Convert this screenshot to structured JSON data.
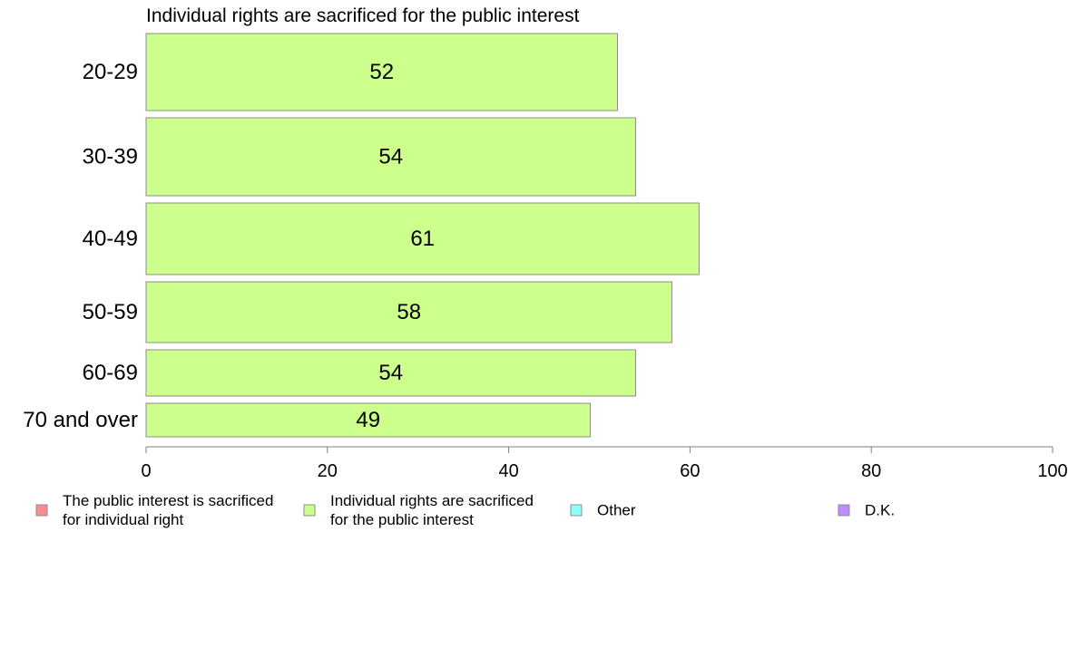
{
  "chart_data": {
    "type": "bar",
    "orientation": "horizontal",
    "title": "Individual rights are sacrificed for the public interest",
    "categories": [
      "20-29",
      "30-39",
      "40-49",
      "50-59",
      "60-69",
      "70 and over"
    ],
    "series": [
      {
        "name": "Individual rights are sacrificed for the public interest",
        "values": [
          52,
          54,
          61,
          58,
          54,
          49
        ],
        "color": "#ccff8c"
      }
    ],
    "xlim": [
      0,
      100
    ],
    "xticks": [
      0,
      20,
      40,
      60,
      80,
      100
    ],
    "grid": false,
    "legend_position": "bottom",
    "legend": [
      {
        "lines": [
          "The public interest is sacrificed",
          "for individual right"
        ],
        "color": "#ff8c8c"
      },
      {
        "lines": [
          "Individual rights are sacrificed",
          "for the public interest"
        ],
        "color": "#ccff8c"
      },
      {
        "lines": [
          "Other"
        ],
        "color": "#8cffff"
      },
      {
        "lines": [
          "D.K."
        ],
        "color": "#bf8cff"
      }
    ]
  }
}
